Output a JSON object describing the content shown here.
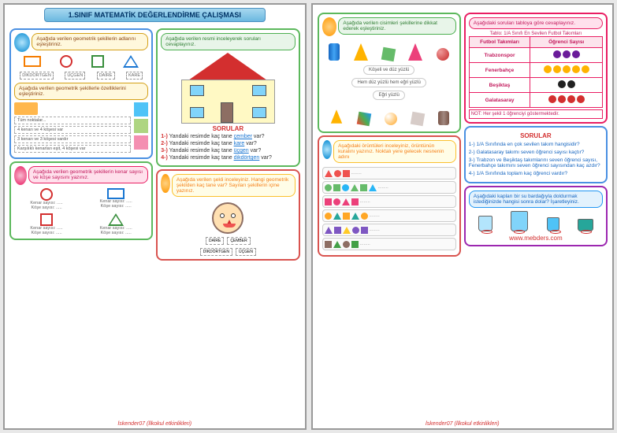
{
  "title": "1.SINIF MATEMATİK DEĞERLENDİRME ÇALIŞMASI",
  "page1": {
    "left": {
      "bubble1": "Aşağıda verilen geometrik şekillerin adlarını eşleştiriniz.",
      "shape_labels": [
        "DİKDÖRTGEN",
        "ÜÇGEN",
        "DAİRE",
        "KARE"
      ],
      "bubble2": "Aşağıda verilen geometrik şekillerle özelliklerini eşleştiriniz.",
      "props": [
        "Tüm noktalar...",
        "4 kenarı ve 4 köşesi var",
        "3 kenarı ve 3 köşesi vardır",
        "Karşılıklı kenarları eşit, 4 köşesi var"
      ],
      "bubble3": "Aşağıda verilen geometrik şekillerin kenar sayısı ve köşe sayısını yazınız.",
      "kenar": "Kenar sayısı: .....",
      "kose": "Köşe sayısı: ....."
    },
    "right": {
      "bubble1": "Aşağıda verilen resmi inceleyerek soruları cevaplayınız.",
      "sorular_h": "SORULAR",
      "s1a": "1-)",
      "s1b": "Yandaki resimde kaç tane",
      "s1c": "çember",
      "s1d": "var?",
      "s2a": "2-)",
      "s2c": "kare",
      "s3a": "3-)",
      "s3c": "üçgen",
      "s4a": "4-)",
      "s4c": "dikdörtgen",
      "bubble2": "Aşağıda verilen şekli inceleyiniz. Hangi geometrik şekilden kaç tane var? Sayıları şekillerin içine yazınız.",
      "mini": [
        "DAİRE",
        "ÇEMBER",
        "DİKDÖRTGEN",
        "ÜÇGEN"
      ]
    },
    "footer": "İskender07 (İlkokul etkinlikleri)"
  },
  "page2": {
    "left": {
      "bubble1": "Aşağıda verilen cisimleri şekillerine dikkat ederek eşleştiriniz.",
      "pill1": "Köşeli ve düz yüzlü",
      "pill2": "Hem düz yüzlü hem eğri yüzlü",
      "pill3": "Eğri yüzlü",
      "bubble2": "Aşağıdaki örüntüleri inceleyiniz, örüntünün kuralını yazınız. Noktalı yere gelecek nesnenin adını",
      "pattern_colors": {
        "row1": [
          "#ef5350",
          "#ef5350",
          "#ef5350"
        ],
        "row2": [
          "#66bb6a",
          "#66bb6a",
          "#29b6f6",
          "#66bb6a",
          "#66bb6a",
          "#29b6f6"
        ],
        "row3": [
          "#ec407a",
          "#ec407a",
          "#ec407a",
          "#ec407a"
        ],
        "row4": [
          "#ffa726",
          "#26a69a",
          "#ffa726",
          "#26a69a",
          "#ffa726"
        ],
        "row5": [
          "#7e57c2",
          "#7e57c2",
          "#ffca28",
          "#7e57c2",
          "#7e57c2"
        ],
        "row6": [
          "#8d6e63",
          "#43a047",
          "#8d6e63",
          "#43a047"
        ]
      }
    },
    "right": {
      "bubble1": "Aşağıdaki soruları tabloya göre cevaplayınız.",
      "table_title": "Tablo: 1/A Sınıfı En Sevilen Futbol Takımları",
      "th1": "Futbol Takımları",
      "th2": "Öğrenci Sayısı",
      "teams": [
        "Trabzonspor",
        "Fenerbahçe",
        "Beşiktaş",
        "Galatasaray"
      ],
      "counts": [
        3,
        5,
        2,
        4
      ],
      "team_colors": [
        "#6a1b9a",
        "#ffb300",
        "#212121",
        "#d32f2f"
      ],
      "note": "NOT: Her şekil 1 öğrenciyi göstermektedir.",
      "sorular_h": "SORULAR",
      "q1": "1-) 1/A Sınıfında en çok sevilen takım hangisidir?",
      "q2": "2-) Galatasaray takımı seven öğrenci sayısı kaçtır?",
      "q3": "3-) Trabzon ve Beşiktaş takımlarını seven öğrenci sayısı, Fenerbahçe takımını seven öğrenci sayısından kaç azdır?",
      "q4": "4-) 1/A Sınıfında toplam kaç öğrenci vardır?",
      "bubble2": "Aşağıdaki kapları bir su bardağıyla doldurmak istediğinizde hangisi sonra dolar? İşaretleyiniz.",
      "site": "www.mebders.com"
    },
    "footer": "İskender07 (İlkokul etkinlikleri)"
  }
}
